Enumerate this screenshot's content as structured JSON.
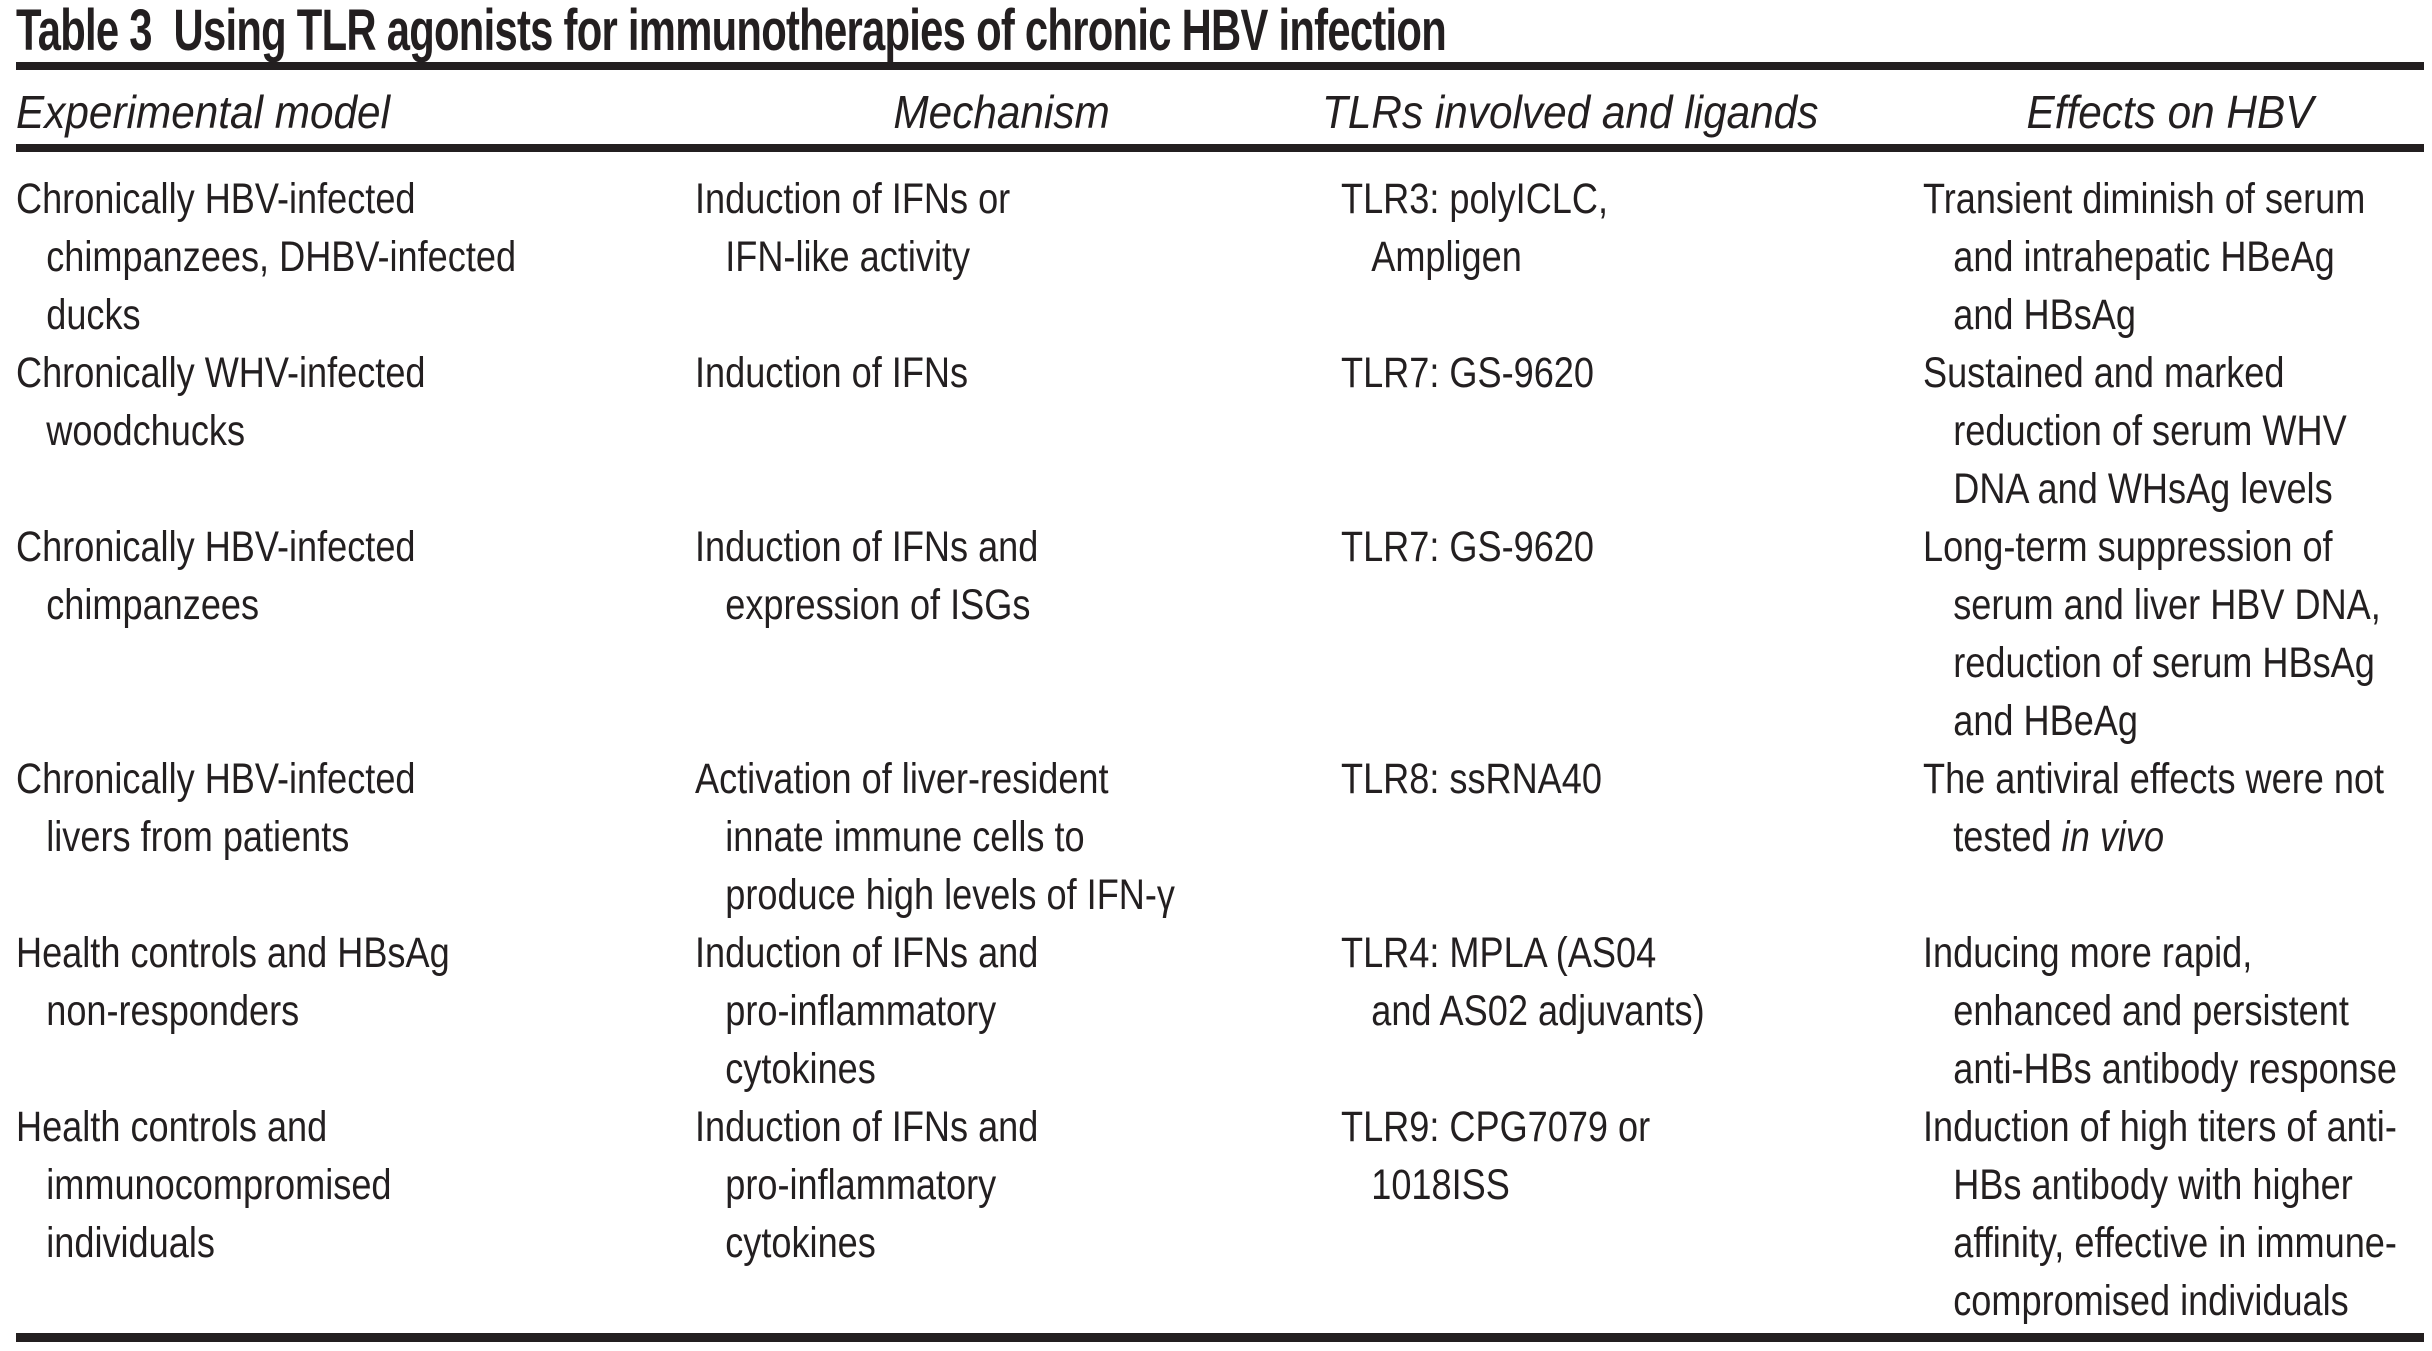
{
  "title": "Table 3  Using TLR agonists for immunotherapies of chronic HBV infection",
  "header": {
    "columns": [
      "Experimental model",
      "Mechanism",
      "TLRs involved and ligands",
      "Effects on HBV"
    ]
  },
  "rows": [
    {
      "model": [
        "Chronically HBV-infected",
        "chimpanzees, DHBV-infected",
        "ducks"
      ],
      "mechanism": [
        "Induction of IFNs or",
        "IFN-like activity"
      ],
      "tlrs": [
        "TLR3: polyICLC,",
        "Ampligen"
      ],
      "effects": [
        "Transient diminish of serum",
        "and intrahepatic HBeAg",
        "and HBsAg"
      ]
    },
    {
      "model": [
        "Chronically WHV-infected",
        "woodchucks"
      ],
      "mechanism": [
        "Induction of IFNs"
      ],
      "tlrs": [
        "TLR7: GS-9620"
      ],
      "effects": [
        "Sustained and marked",
        "reduction of serum WHV",
        "DNA and WHsAg levels"
      ]
    },
    {
      "model": [
        "Chronically HBV-infected",
        "chimpanzees"
      ],
      "mechanism": [
        "Induction of IFNs and",
        "expression of ISGs"
      ],
      "tlrs": [
        "TLR7: GS-9620"
      ],
      "effects": [
        "Long-term suppression of",
        "serum and liver HBV DNA,",
        "reduction of serum HBsAg",
        "and HBeAg"
      ]
    },
    {
      "model": [
        "Chronically HBV-infected",
        "livers from patients"
      ],
      "mechanism": [
        "Activation of liver-resident",
        "innate immune cells to",
        "produce high levels of IFN-γ"
      ],
      "tlrs": [
        "TLR8: ssRNA40"
      ],
      "effects": [
        "The antiviral effects were not",
        {
          "segments": [
            {
              "text": "tested "
            },
            {
              "text": "in vivo",
              "italic": true
            }
          ]
        }
      ]
    },
    {
      "model": [
        "Health controls and HBsAg",
        "non-responders"
      ],
      "mechanism": [
        "Induction of IFNs and",
        "pro-inflammatory",
        "cytokines"
      ],
      "tlrs": [
        "TLR4: MPLA (AS04",
        "and AS02 adjuvants)"
      ],
      "effects": [
        "Inducing more rapid,",
        "enhanced and persistent",
        "anti-HBs antibody response"
      ]
    },
    {
      "model": [
        "Health controls and",
        "immunocompromised",
        "individuals"
      ],
      "mechanism": [
        "Induction of IFNs and",
        "pro-inflammatory",
        "cytokines"
      ],
      "tlrs": [
        "TLR9: CPG7079 or",
        "1018ISS"
      ],
      "effects": [
        "Induction of high titers of anti-",
        "HBs antibody with higher",
        "affinity, effective in immune-",
        "compromised individuals"
      ]
    }
  ],
  "colors": {
    "text": "#231f20",
    "rule": "#231f20",
    "background": "#ffffff"
  }
}
